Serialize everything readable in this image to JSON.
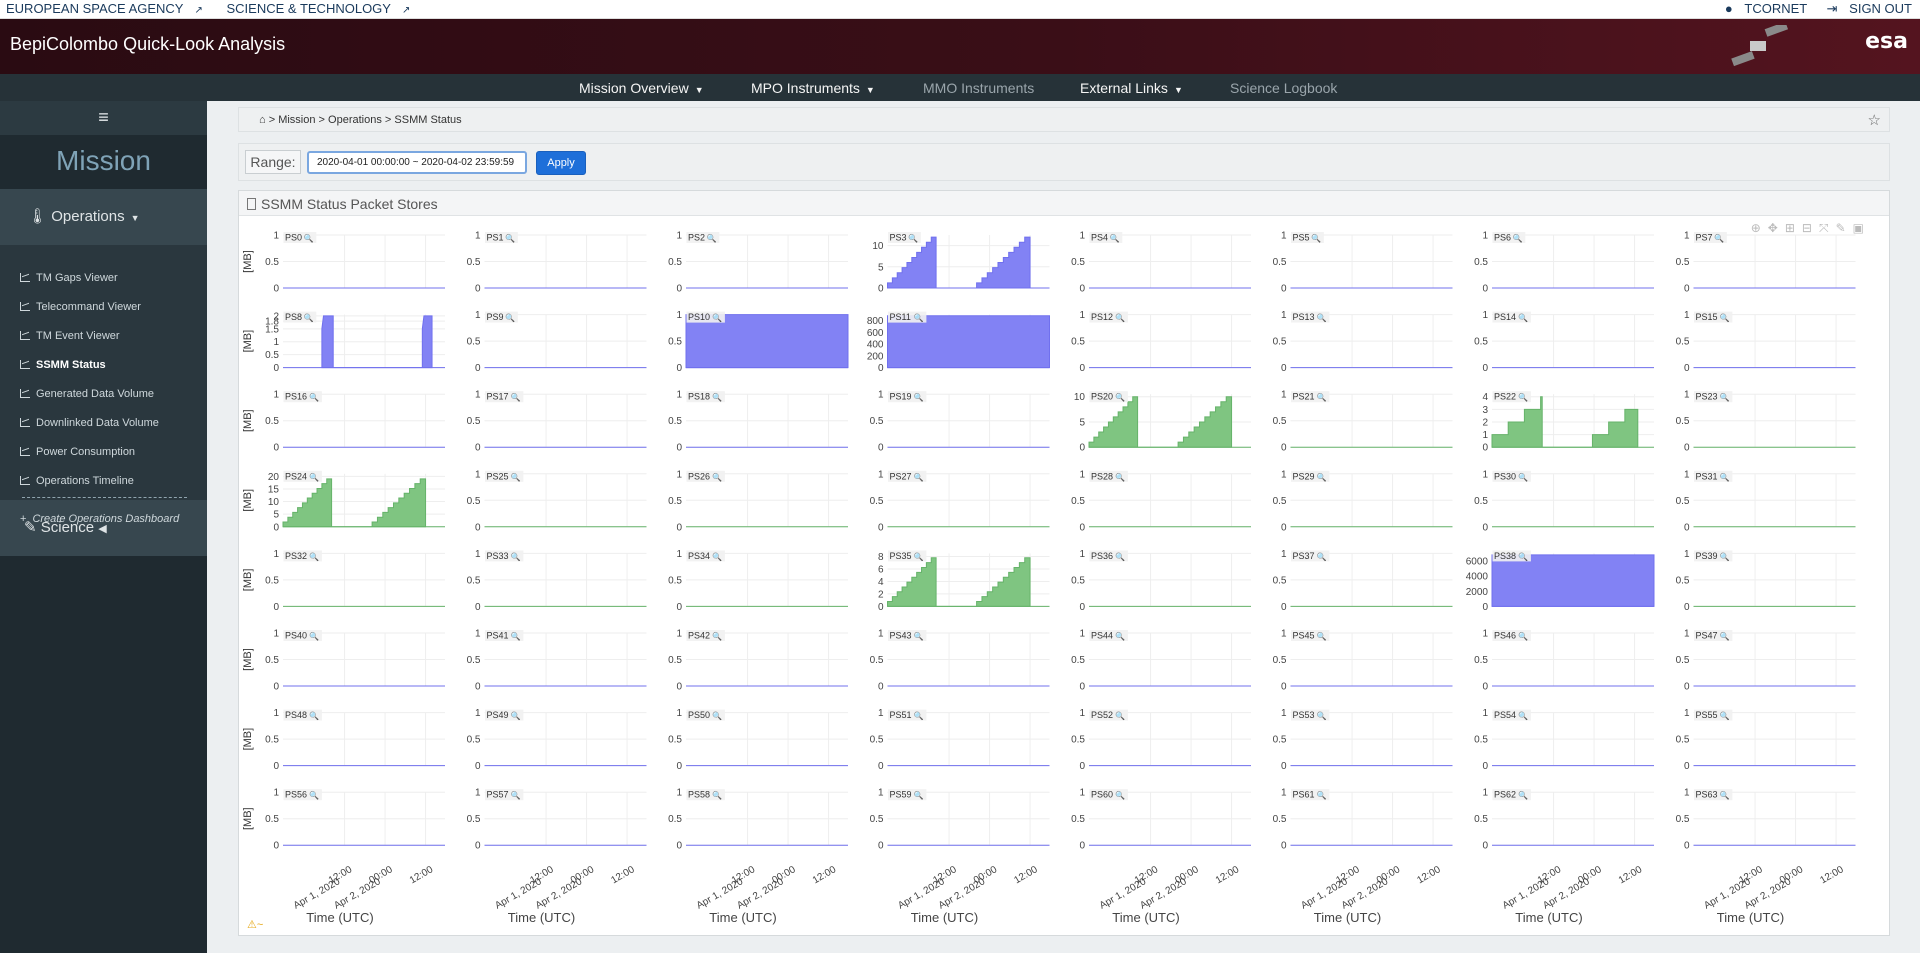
{
  "topbar": {
    "left_links": [
      "EUROPEAN SPACE AGENCY",
      "SCIENCE & TECHNOLOGY"
    ],
    "user": "TCORNET",
    "signout": "SIGN OUT"
  },
  "header": {
    "title": "BepiColombo Quick-Look Analysis",
    "logo_text": "esa"
  },
  "nav": {
    "items": [
      {
        "label": "Mission Overview",
        "dropdown": true,
        "enabled": true
      },
      {
        "label": "MPO Instruments",
        "dropdown": true,
        "enabled": true
      },
      {
        "label": "MMO Instruments",
        "dropdown": false,
        "enabled": false
      },
      {
        "label": "External Links",
        "dropdown": true,
        "enabled": true
      },
      {
        "label": "Science Logbook",
        "dropdown": false,
        "enabled": false
      }
    ]
  },
  "sidebar": {
    "title": "Mission",
    "section_ops": "Operations",
    "links": [
      {
        "label": "TM Gaps Viewer",
        "active": false
      },
      {
        "label": "Telecommand Viewer",
        "active": false
      },
      {
        "label": "TM Event Viewer",
        "active": false
      },
      {
        "label": "SSMM Status",
        "active": true
      },
      {
        "label": "Generated Data Volume",
        "active": false
      },
      {
        "label": "Downlinked Data Volume",
        "active": false
      },
      {
        "label": "Power Consumption",
        "active": false
      },
      {
        "label": "Operations Timeline",
        "active": false
      }
    ],
    "create_dashboard": "Create Operations Dashboard",
    "section_sci": "Science"
  },
  "breadcrumb": {
    "items": [
      "Mission",
      "Operations",
      "SSMM Status"
    ]
  },
  "range": {
    "label": "Range:",
    "value": "2020-04-01 00:00:00 ~ 2020-04-02 23:59:59",
    "apply": "Apply"
  },
  "panel": {
    "title": "SSMM Status Packet Stores"
  },
  "chart_data": {
    "type": "area",
    "ylabel": "[MB]",
    "xlabel": "Time (UTC)",
    "x_ticks": [
      "12:00\nApr 1, 2020",
      "00:00\nApr 2, 2020",
      "12:00"
    ],
    "colors": {
      "blue": "#7b7bf3",
      "green": "#78c27a"
    },
    "stores": [
      {
        "name": "PS0",
        "yticks": [
          0,
          0.5,
          1
        ],
        "color": "blue",
        "shape": "flat"
      },
      {
        "name": "PS1",
        "yticks": [
          0,
          0.5,
          1
        ],
        "color": "blue",
        "shape": "flat"
      },
      {
        "name": "PS2",
        "yticks": [
          0,
          0.5,
          1
        ],
        "color": "blue",
        "shape": "flat"
      },
      {
        "name": "PS3",
        "yticks": [
          0,
          5,
          10
        ],
        "ymax": 12.5,
        "color": "blue",
        "shape": "ramp",
        "peak": 12
      },
      {
        "name": "PS4",
        "yticks": [
          0,
          0.5,
          1
        ],
        "color": "blue",
        "shape": "flat"
      },
      {
        "name": "PS5",
        "yticks": [
          0,
          0.5,
          1
        ],
        "color": "blue",
        "shape": "flat"
      },
      {
        "name": "PS6",
        "yticks": [
          0,
          0.5,
          1
        ],
        "color": "blue",
        "shape": "flat"
      },
      {
        "name": "PS7",
        "yticks": [
          0,
          0.5,
          1
        ],
        "color": "blue",
        "shape": "flat"
      },
      {
        "name": "PS8",
        "yticks": [
          0,
          0.5,
          1,
          1.5,
          1.8,
          2
        ],
        "ymax": 2.05,
        "color": "blue",
        "shape": "pulse",
        "peak": 2
      },
      {
        "name": "PS9",
        "yticks": [
          0,
          0.5,
          1
        ],
        "color": "blue",
        "shape": "flat"
      },
      {
        "name": "PS10",
        "yticks": [
          0,
          0.5,
          1
        ],
        "color": "blue",
        "shape": "full",
        "peak": 1
      },
      {
        "name": "PS11",
        "yticks": [
          0,
          200,
          400,
          600,
          800
        ],
        "ymax": 900,
        "color": "blue",
        "shape": "full",
        "peak": 880
      },
      {
        "name": "PS12",
        "yticks": [
          0,
          0.5,
          1
        ],
        "color": "blue",
        "shape": "flat"
      },
      {
        "name": "PS13",
        "yticks": [
          0,
          0.5,
          1
        ],
        "color": "blue",
        "shape": "flat"
      },
      {
        "name": "PS14",
        "yticks": [
          0,
          0.5,
          1
        ],
        "color": "blue",
        "shape": "flat"
      },
      {
        "name": "PS15",
        "yticks": [
          0,
          0.5,
          1
        ],
        "color": "blue",
        "shape": "flat"
      },
      {
        "name": "PS16",
        "yticks": [
          0,
          0.5,
          1
        ],
        "color": "blue",
        "shape": "flat"
      },
      {
        "name": "PS17",
        "yticks": [
          0,
          0.5,
          1
        ],
        "color": "blue",
        "shape": "flat"
      },
      {
        "name": "PS18",
        "yticks": [
          0,
          0.5,
          1
        ],
        "color": "blue",
        "shape": "flat"
      },
      {
        "name": "PS19",
        "yticks": [
          0,
          0.5,
          1
        ],
        "color": "blue",
        "shape": "flat"
      },
      {
        "name": "PS20",
        "yticks": [
          0,
          5,
          10
        ],
        "ymax": 10.5,
        "color": "green",
        "shape": "ramp",
        "peak": 10
      },
      {
        "name": "PS21",
        "yticks": [
          0,
          0.5,
          1
        ],
        "color": "green",
        "shape": "flat"
      },
      {
        "name": "PS22",
        "yticks": [
          0,
          1,
          2,
          3,
          4
        ],
        "ymax": 4.2,
        "color": "green",
        "shape": "steps",
        "peak": 4
      },
      {
        "name": "PS23",
        "yticks": [
          0,
          0.5,
          1
        ],
        "color": "green",
        "shape": "flat"
      },
      {
        "name": "PS24",
        "yticks": [
          0,
          5,
          10,
          15,
          20
        ],
        "ymax": 21,
        "color": "green",
        "shape": "ramp",
        "peak": 19
      },
      {
        "name": "PS25",
        "yticks": [
          0,
          0.5,
          1
        ],
        "color": "green",
        "shape": "flat"
      },
      {
        "name": "PS26",
        "yticks": [
          0,
          0.5,
          1
        ],
        "color": "green",
        "shape": "flat"
      },
      {
        "name": "PS27",
        "yticks": [
          0,
          0.5,
          1
        ],
        "color": "green",
        "shape": "flat"
      },
      {
        "name": "PS28",
        "yticks": [
          0,
          0.5,
          1
        ],
        "color": "green",
        "shape": "flat"
      },
      {
        "name": "PS29",
        "yticks": [
          0,
          0.5,
          1
        ],
        "color": "green",
        "shape": "flat"
      },
      {
        "name": "PS30",
        "yticks": [
          0,
          0.5,
          1
        ],
        "color": "green",
        "shape": "flat"
      },
      {
        "name": "PS31",
        "yticks": [
          0,
          0.5,
          1
        ],
        "color": "green",
        "shape": "flat"
      },
      {
        "name": "PS32",
        "yticks": [
          0,
          0.5,
          1
        ],
        "color": "green",
        "shape": "flat"
      },
      {
        "name": "PS33",
        "yticks": [
          0,
          0.5,
          1
        ],
        "color": "green",
        "shape": "flat"
      },
      {
        "name": "PS34",
        "yticks": [
          0,
          0.5,
          1
        ],
        "color": "green",
        "shape": "flat"
      },
      {
        "name": "PS35",
        "yticks": [
          0,
          2,
          4,
          6,
          8
        ],
        "ymax": 8.5,
        "color": "green",
        "shape": "ramp",
        "peak": 7.8
      },
      {
        "name": "PS36",
        "yticks": [
          0,
          0.5,
          1
        ],
        "color": "green",
        "shape": "flat"
      },
      {
        "name": "PS37",
        "yticks": [
          0,
          0.5,
          1
        ],
        "color": "green",
        "shape": "flat"
      },
      {
        "name": "PS38",
        "yticks": [
          0,
          2000,
          4000,
          6000
        ],
        "ymax": 7000,
        "color": "blue",
        "shape": "full",
        "peak": 6800
      },
      {
        "name": "PS39",
        "yticks": [
          0,
          0.5,
          1
        ],
        "color": "green",
        "shape": "flat"
      },
      {
        "name": "PS40",
        "yticks": [
          0,
          0.5,
          1
        ],
        "color": "blue",
        "shape": "flat"
      },
      {
        "name": "PS41",
        "yticks": [
          0,
          0.5,
          1
        ],
        "color": "blue",
        "shape": "flat"
      },
      {
        "name": "PS42",
        "yticks": [
          0,
          0.5,
          1
        ],
        "color": "blue",
        "shape": "flat"
      },
      {
        "name": "PS43",
        "yticks": [
          0,
          0.5,
          1
        ],
        "color": "blue",
        "shape": "flat"
      },
      {
        "name": "PS44",
        "yticks": [
          0,
          0.5,
          1
        ],
        "color": "blue",
        "shape": "flat"
      },
      {
        "name": "PS45",
        "yticks": [
          0,
          0.5,
          1
        ],
        "color": "blue",
        "shape": "flat"
      },
      {
        "name": "PS46",
        "yticks": [
          0,
          0.5,
          1
        ],
        "color": "blue",
        "shape": "flat"
      },
      {
        "name": "PS47",
        "yticks": [
          0,
          0.5,
          1
        ],
        "color": "blue",
        "shape": "flat"
      },
      {
        "name": "PS48",
        "yticks": [
          0,
          0.5,
          1
        ],
        "color": "blue",
        "shape": "flat"
      },
      {
        "name": "PS49",
        "yticks": [
          0,
          0.5,
          1
        ],
        "color": "blue",
        "shape": "flat"
      },
      {
        "name": "PS50",
        "yticks": [
          0,
          0.5,
          1
        ],
        "color": "blue",
        "shape": "flat"
      },
      {
        "name": "PS51",
        "yticks": [
          0,
          0.5,
          1
        ],
        "color": "blue",
        "shape": "flat"
      },
      {
        "name": "PS52",
        "yticks": [
          0,
          0.5,
          1
        ],
        "color": "blue",
        "shape": "flat"
      },
      {
        "name": "PS53",
        "yticks": [
          0,
          0.5,
          1
        ],
        "color": "blue",
        "shape": "flat"
      },
      {
        "name": "PS54",
        "yticks": [
          0,
          0.5,
          1
        ],
        "color": "blue",
        "shape": "flat"
      },
      {
        "name": "PS55",
        "yticks": [
          0,
          0.5,
          1
        ],
        "color": "blue",
        "shape": "flat"
      },
      {
        "name": "PS56",
        "yticks": [
          0,
          0.5,
          1
        ],
        "color": "blue",
        "shape": "flat"
      },
      {
        "name": "PS57",
        "yticks": [
          0,
          0.5,
          1
        ],
        "color": "blue",
        "shape": "flat"
      },
      {
        "name": "PS58",
        "yticks": [
          0,
          0.5,
          1
        ],
        "color": "blue",
        "shape": "flat"
      },
      {
        "name": "PS59",
        "yticks": [
          0,
          0.5,
          1
        ],
        "color": "blue",
        "shape": "flat"
      },
      {
        "name": "PS60",
        "yticks": [
          0,
          0.5,
          1
        ],
        "color": "blue",
        "shape": "flat"
      },
      {
        "name": "PS61",
        "yticks": [
          0,
          0.5,
          1
        ],
        "color": "blue",
        "shape": "flat"
      },
      {
        "name": "PS62",
        "yticks": [
          0,
          0.5,
          1
        ],
        "color": "blue",
        "shape": "flat"
      },
      {
        "name": "PS63",
        "yticks": [
          0,
          0.5,
          1
        ],
        "color": "blue",
        "shape": "flat"
      }
    ]
  }
}
